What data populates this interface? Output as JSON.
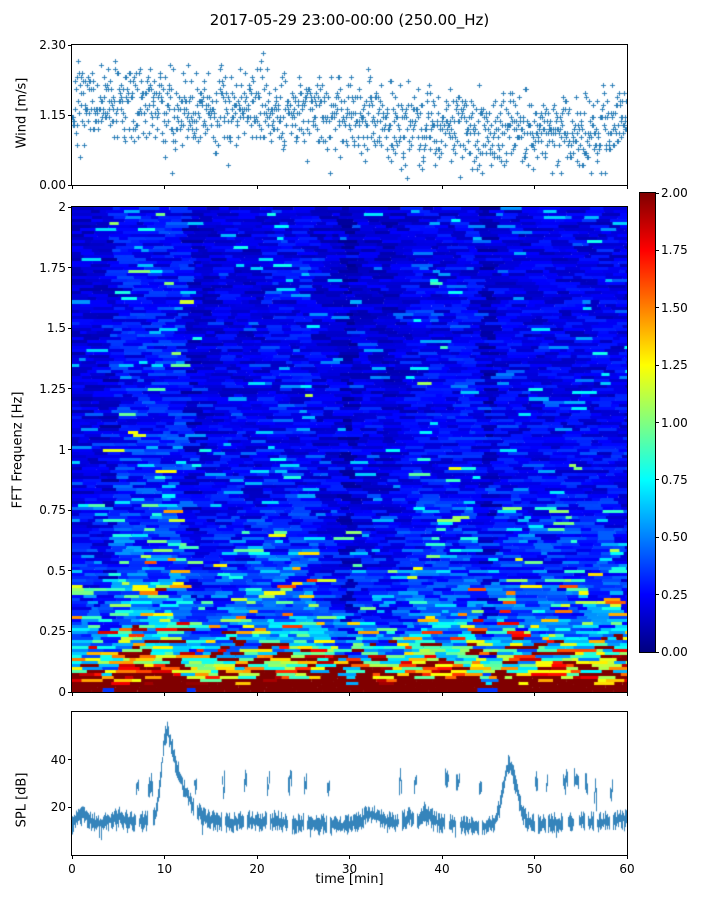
{
  "title": "2017-05-29 23:00-00:00 (250.00_Hz)",
  "colors": {
    "marker": "#1f77b4",
    "line": "#1f77b4",
    "axis": "#000000",
    "background": "#ffffff"
  },
  "chart_data": [
    {
      "type": "scatter",
      "name": "wind",
      "ylabel": "Wind [m/s]",
      "yticks": [
        0.0,
        1.15,
        2.3
      ],
      "ytick_labels": [
        "0.00",
        "1.15",
        "2.30"
      ],
      "ylim": [
        0,
        2.3
      ],
      "xlim": [
        0,
        60
      ],
      "xticks": [
        0,
        10,
        20,
        30,
        40,
        50,
        60
      ],
      "marker": "+",
      "marker_color": "#1f77b4",
      "n_points": 1250,
      "quantize_step": 0.0657,
      "noise_halfwidth": 0.55,
      "clip": [
        0.12,
        2.26
      ],
      "trend": [
        [
          0,
          1.25
        ],
        [
          3,
          1.3
        ],
        [
          6,
          1.35
        ],
        [
          9,
          1.3
        ],
        [
          12,
          1.2
        ],
        [
          15,
          1.25
        ],
        [
          18,
          1.3
        ],
        [
          21,
          1.3
        ],
        [
          24,
          1.25
        ],
        [
          27,
          1.2
        ],
        [
          30,
          1.15
        ],
        [
          33,
          1.05
        ],
        [
          36,
          1.0
        ],
        [
          39,
          0.95
        ],
        [
          42,
          1.0
        ],
        [
          45,
          0.9
        ],
        [
          48,
          0.95
        ],
        [
          51,
          0.85
        ],
        [
          54,
          0.85
        ],
        [
          57,
          0.9
        ],
        [
          60,
          1.05
        ]
      ]
    },
    {
      "type": "heatmap",
      "name": "spectrogram",
      "ylabel": "FFT Frequenz [Hz]",
      "yticks": [
        0,
        0.25,
        0.5,
        0.75,
        1,
        1.25,
        1.5,
        1.75,
        2
      ],
      "ytick_labels": [
        "0",
        "0.25",
        "0.5",
        "0.75",
        "1",
        "1.25",
        "1.5",
        "1.75",
        "2"
      ],
      "ylim": [
        0,
        2
      ],
      "xlim": [
        0,
        60
      ],
      "xticks": [
        0,
        10,
        20,
        30,
        40,
        50,
        60
      ],
      "colormap": "jet",
      "clim": [
        0,
        2
      ],
      "colorbar": {
        "ticks": [
          0.0,
          0.25,
          0.5,
          0.75,
          1.0,
          1.25,
          1.5,
          1.75,
          2.0
        ],
        "tick_labels": [
          "0.00",
          "0.25",
          "0.50",
          "0.75",
          "1.00",
          "1.25",
          "1.50",
          "1.75",
          "2.00"
        ]
      },
      "freq_profile": [
        [
          0,
          2.2
        ],
        [
          0.03,
          2.2
        ],
        [
          0.05,
          1.3
        ],
        [
          0.08,
          1.0
        ],
        [
          0.12,
          0.8
        ],
        [
          0.18,
          0.6
        ],
        [
          0.25,
          0.45
        ],
        [
          0.35,
          0.33
        ],
        [
          0.5,
          0.28
        ],
        [
          0.8,
          0.22
        ],
        [
          1.2,
          0.19
        ],
        [
          2,
          0.17
        ]
      ],
      "streak_prob": [
        [
          0,
          0.5
        ],
        [
          0.1,
          0.45
        ],
        [
          0.25,
          0.3
        ],
        [
          0.5,
          0.18
        ],
        [
          1,
          0.1
        ],
        [
          2,
          0.08
        ]
      ],
      "solid_band_max_freq": 0.03,
      "time_modulation": [
        [
          3.9,
          4.35,
          0.6
        ],
        [
          4.5,
          12.5,
          1.55
        ],
        [
          12.7,
          13.2,
          0.6
        ],
        [
          16,
          18.5,
          1.2
        ],
        [
          20.5,
          26.5,
          1.3
        ],
        [
          29.4,
          30.4,
          0.38
        ],
        [
          33.5,
          34.5,
          0.75
        ],
        [
          36.5,
          44,
          1.3
        ],
        [
          44.7,
          45.4,
          0.45
        ],
        [
          45.6,
          48.5,
          1.25
        ],
        [
          49.5,
          60,
          1.2
        ]
      ]
    },
    {
      "type": "line",
      "name": "spl",
      "ylabel": "SPL [dB]",
      "xlabel": "time [min]",
      "yticks": [
        20,
        40
      ],
      "ytick_labels": [
        "20",
        "40"
      ],
      "ylim": [
        0,
        60
      ],
      "xlim": [
        0,
        60
      ],
      "xticks": [
        0,
        10,
        20,
        30,
        40,
        50,
        60
      ],
      "xtick_labels": [
        "0",
        "10",
        "20",
        "30",
        "40",
        "50",
        "60"
      ],
      "line_color": "#1f77b4",
      "noise_halfwidth": 2.5,
      "envelope": [
        [
          0,
          13
        ],
        [
          0.8,
          16
        ],
        [
          1.2,
          17
        ],
        [
          2,
          14
        ],
        [
          3,
          13.5
        ],
        [
          4,
          14.5
        ],
        [
          5,
          16
        ],
        [
          5.5,
          15
        ],
        [
          6.5,
          14
        ],
        [
          7.5,
          14
        ],
        [
          8.8,
          15
        ],
        [
          9.2,
          20
        ],
        [
          9.6,
          35
        ],
        [
          10,
          50
        ],
        [
          10.3,
          52
        ],
        [
          10.7,
          46
        ],
        [
          11.2,
          38
        ],
        [
          12,
          28
        ],
        [
          13,
          21
        ],
        [
          14,
          16
        ],
        [
          15,
          14.5
        ],
        [
          16,
          14
        ],
        [
          17,
          13.5
        ],
        [
          18,
          14
        ],
        [
          19,
          14.5
        ],
        [
          20,
          14
        ],
        [
          21,
          14
        ],
        [
          22,
          14.5
        ],
        [
          23,
          13.5
        ],
        [
          24,
          13
        ],
        [
          25,
          13.5
        ],
        [
          26,
          13
        ],
        [
          27,
          13
        ],
        [
          28,
          12.5
        ],
        [
          29,
          12
        ],
        [
          30,
          13
        ],
        [
          31,
          14
        ],
        [
          31.8,
          16.5
        ],
        [
          32.5,
          17
        ],
        [
          33.5,
          15
        ],
        [
          34.5,
          13.5
        ],
        [
          35.5,
          14
        ],
        [
          36.5,
          16
        ],
        [
          37.5,
          15
        ],
        [
          38,
          18
        ],
        [
          38.7,
          16
        ],
        [
          39.5,
          13.5
        ],
        [
          40.5,
          13
        ],
        [
          41.5,
          13
        ],
        [
          42.5,
          12.5
        ],
        [
          43.5,
          12
        ],
        [
          44.5,
          12
        ],
        [
          45.5,
          13
        ],
        [
          46.2,
          20
        ],
        [
          46.8,
          33
        ],
        [
          47.1,
          38
        ],
        [
          47.5,
          36
        ],
        [
          48,
          28
        ],
        [
          48.6,
          18
        ],
        [
          49.2,
          14
        ],
        [
          50,
          13
        ],
        [
          51,
          13
        ],
        [
          52,
          13.5
        ],
        [
          53,
          13.5
        ],
        [
          54,
          14
        ],
        [
          55,
          14.5
        ],
        [
          56,
          14
        ],
        [
          57,
          13.5
        ],
        [
          58,
          14.5
        ],
        [
          59,
          15
        ],
        [
          60,
          15.5
        ]
      ],
      "spikes": [
        [
          7.0,
          33,
          0.35
        ],
        [
          8.4,
          31,
          0.5
        ],
        [
          13.3,
          33,
          0.3
        ],
        [
          16.3,
          32,
          0.35
        ],
        [
          18.7,
          33,
          0.3
        ],
        [
          21.2,
          33,
          0.35
        ],
        [
          23.5,
          35,
          0.4
        ],
        [
          25.2,
          33,
          0.35
        ],
        [
          27.7,
          33,
          0.3
        ],
        [
          35.5,
          33,
          0.3
        ],
        [
          37.1,
          33,
          0.35
        ],
        [
          40.5,
          35,
          0.45
        ],
        [
          41.7,
          32,
          0.4
        ],
        [
          44.1,
          30,
          0.3
        ],
        [
          50.2,
          32,
          0.35
        ],
        [
          51.3,
          32,
          0.3
        ],
        [
          53.3,
          34,
          0.5
        ],
        [
          54.5,
          35,
          0.55
        ],
        [
          55.6,
          33,
          0.35
        ],
        [
          56.5,
          28,
          0.3
        ],
        [
          58.3,
          30,
          0.3
        ]
      ]
    }
  ]
}
